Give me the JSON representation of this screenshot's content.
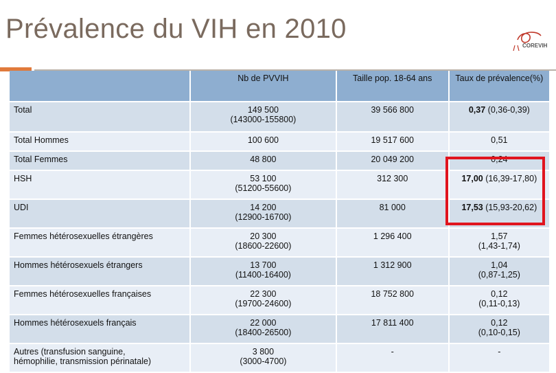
{
  "title": "Prévalence du VIH en 2010",
  "logo": {
    "text": "COREVIH",
    "icon": "corevih-ribbon-logo"
  },
  "colors": {
    "header": "#8eaed0",
    "row_dark": "#d3deea",
    "row_light": "#e8eef6",
    "highlight": "#e0141e",
    "title": "#7a6a5e",
    "accent": "#e07a3c"
  },
  "table": {
    "headers": [
      "",
      "Nb de PVVIH",
      "Taille pop. 18-64 ans",
      "Taux de prévalence(%)"
    ],
    "rows": [
      {
        "label": "Total",
        "pvvih": "149 500",
        "pvvih_ci": "(143000-155800)",
        "pop": "39 566 800",
        "taux": "0,37",
        "taux_ci": " (0,36-0,39)"
      },
      {
        "label": "Total Hommes",
        "pvvih": "100 600",
        "pvvih_ci": "",
        "pop": "19 517 600",
        "taux": "0,51",
        "taux_ci": ""
      },
      {
        "label": "Total Femmes",
        "pvvih": "48 800",
        "pvvih_ci": "",
        "pop": "20 049 200",
        "taux": "0,24",
        "taux_ci": ""
      },
      {
        "label": "HSH",
        "pvvih": "53 100",
        "pvvih_ci": "(51200-55600)",
        "pop": "312 300",
        "taux": "17,00",
        "taux_ci": " (16,39-17,80)"
      },
      {
        "label": "UDI",
        "pvvih": "14 200",
        "pvvih_ci": "(12900-16700)",
        "pop": "81 000",
        "taux": "17,53",
        "taux_ci": " (15,93-20,62)"
      },
      {
        "label": "Femmes hétérosexuelles étrangères",
        "pvvih": "20 300",
        "pvvih_ci": "(18600-22600)",
        "pop": "1 296 400",
        "taux": "1,57",
        "taux_ci": "(1,43-1,74)"
      },
      {
        "label": "Hommes hétérosexuels étrangers",
        "pvvih": "13 700",
        "pvvih_ci": "(11400-16400)",
        "pop": "1 312 900",
        "taux": "1,04",
        "taux_ci": "(0,87-1,25)"
      },
      {
        "label": "Femmes hétérosexuelles françaises",
        "pvvih": "22 300",
        "pvvih_ci": "(19700-24600)",
        "pop": "18 752 800",
        "taux": "0,12",
        "taux_ci": "(0,11-0,13)"
      },
      {
        "label": "Hommes hétérosexuels français",
        "pvvih": "22 000",
        "pvvih_ci": "(18400-26500)",
        "pop": "17 811 400",
        "taux": "0,12",
        "taux_ci": "(0,10-0,15)"
      },
      {
        "label": "Autres (transfusion sanguine,",
        "label2": "hémophilie, transmission périnatale)",
        "pvvih": "3 800",
        "pvvih_ci": "(3000-4700)",
        "pop": "-",
        "taux": "-",
        "taux_ci": ""
      }
    ]
  }
}
